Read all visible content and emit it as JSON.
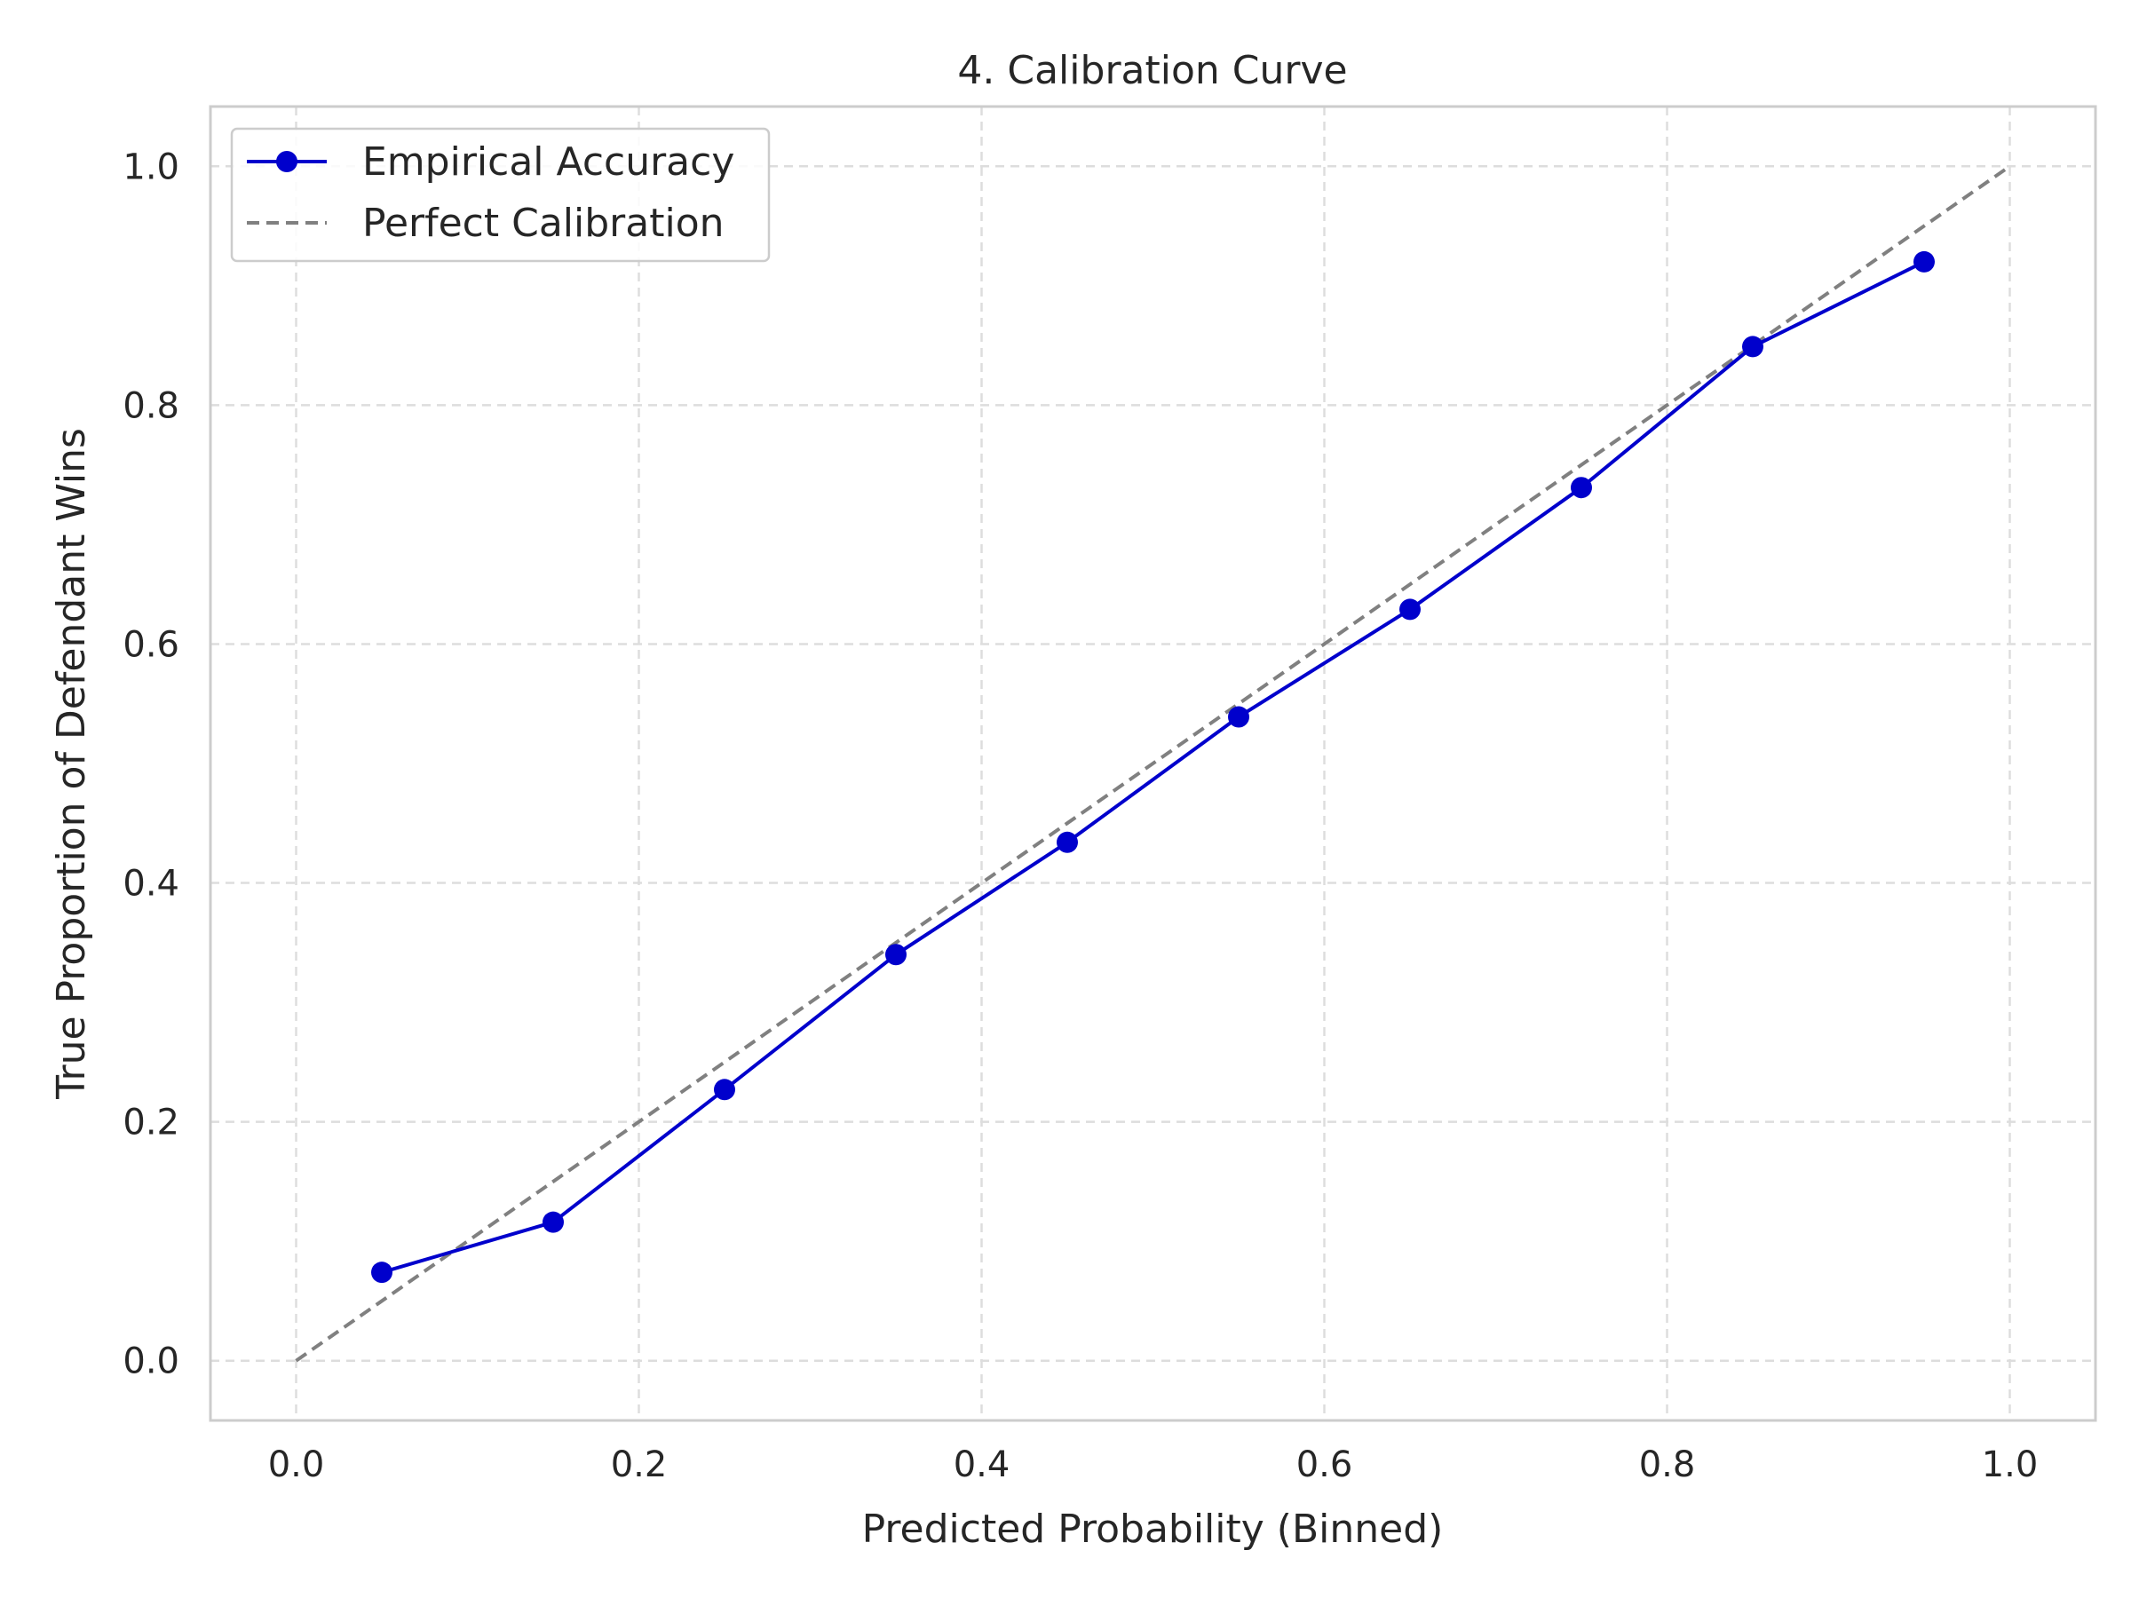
{
  "chart_data": {
    "type": "line",
    "title": "4. Calibration Curve",
    "xlabel": "Predicted Probability (Binned)",
    "ylabel": "True Proportion of Defendant Wins",
    "xlim": [
      -0.05,
      1.05
    ],
    "ylim": [
      -0.05,
      1.05
    ],
    "xticks": [
      0.0,
      0.2,
      0.4,
      0.6,
      0.8,
      1.0
    ],
    "yticks": [
      0.0,
      0.2,
      0.4,
      0.6,
      0.8,
      1.0
    ],
    "xtick_labels": [
      "0.0",
      "0.2",
      "0.4",
      "0.6",
      "0.8",
      "1.0"
    ],
    "ytick_labels": [
      "0.0",
      "0.2",
      "0.4",
      "0.6",
      "0.8",
      "1.0"
    ],
    "grid": true,
    "legend_position": "top-left",
    "series": [
      {
        "name": "Empirical Accuracy",
        "color": "#0000cc",
        "style": "solid-with-markers",
        "x": [
          0.05,
          0.15,
          0.25,
          0.35,
          0.45,
          0.55,
          0.65,
          0.75,
          0.85,
          0.95
        ],
        "y": [
          0.074,
          0.116,
          0.227,
          0.34,
          0.434,
          0.539,
          0.629,
          0.731,
          0.849,
          0.92
        ]
      },
      {
        "name": "Perfect Calibration",
        "color": "#808080",
        "style": "dashed",
        "x": [
          0.0,
          1.0
        ],
        "y": [
          0.0,
          1.0
        ]
      }
    ]
  }
}
